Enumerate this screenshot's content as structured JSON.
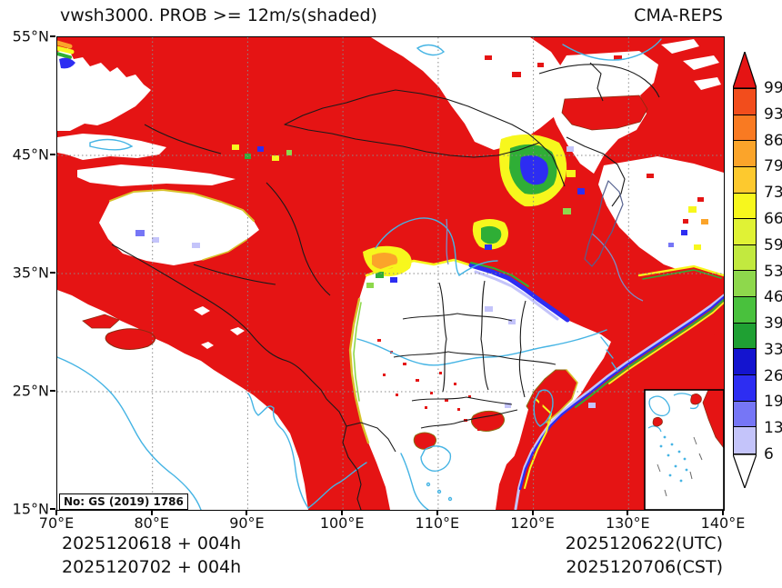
{
  "header": {
    "title": "vwsh3000. PROB >= 12m/s(shaded)",
    "source": "CMA-REPS"
  },
  "map": {
    "license": "No: GS (2019) 1786",
    "x_ticks": [
      "70°E",
      "80°E",
      "90°E",
      "100°E",
      "110°E",
      "120°E",
      "130°E",
      "140°E"
    ],
    "y_ticks": [
      "55°N",
      "45°N",
      "35°N",
      "25°N",
      "15°N"
    ]
  },
  "colorbar": {
    "values_top_to_bottom": [
      "99",
      "93",
      "86",
      "79",
      "73",
      "66",
      "59",
      "53",
      "46",
      "39",
      "33",
      "26",
      "19",
      "13",
      "6"
    ],
    "segment_colors_top_to_bottom": [
      "#f24d1c",
      "#f97a22",
      "#fba42a",
      "#fdc92e",
      "#f7f71d",
      "#e0f235",
      "#c2e93f",
      "#8ed84c",
      "#49c13d",
      "#1fa033",
      "#1414cf",
      "#2d2df2",
      "#7676f6",
      "#c4c4fa"
    ],
    "over_color": "#e51414",
    "under_color": "#ffffff"
  },
  "footer": {
    "init_line_1": "2025120618  +  004h",
    "init_line_2": "2025120702  +  004h",
    "valid_utc": "2025120622(UTC)",
    "valid_cst": "2025120706(CST)"
  },
  "colors": {
    "field_red": "#e51414",
    "fringe_yellow": "#f7f71d",
    "fringe_green": "#2fae36",
    "fringe_blue": "#2d2df2",
    "fringe_violet": "#c4c4fa",
    "river_cyan": "#45b4e4",
    "border_black": "#1a1a1a"
  },
  "chart_data": {
    "type": "heatmap",
    "title": "vwsh3000. PROB >= 12m/s(shaded)",
    "model": "CMA-REPS",
    "variable": "probability of 0-3000m vertical wind shear >= 12 m/s (percent, shaded)",
    "lon_range_deg_e": [
      70,
      140
    ],
    "lat_range_deg_n": [
      15,
      55
    ],
    "lon_ticks_deg_e": [
      70,
      80,
      90,
      100,
      110,
      120,
      130,
      140
    ],
    "lat_ticks_deg_n": [
      15,
      25,
      35,
      45,
      55
    ],
    "colorbar_levels_percent": [
      6,
      13,
      19,
      26,
      33,
      39,
      46,
      53,
      59,
      66,
      73,
      79,
      86,
      93,
      99
    ],
    "legend_position": "right",
    "grid": "dotted graticule every 10 degrees",
    "init_time": "2025120618 UTC / 2025120702 CST",
    "forecast_hour": "004h",
    "valid_time": "2025120622 UTC / 2025120706 CST",
    "field_summary": [
      "near-100% probability (solid red) over most of the domain: Tibetan Plateau, Xinjiang mountains, Mongolia, north and northeast Asia, the Sea of Okhotsk area and the western Pacific southeast of Taiwan",
      "low probability (white) over the Tarim Basin, central Mongolia near 50N/103E, the Sea of Japan, central-southern China (roughly 20-33N, 100-122E), India and the Bay of Bengal",
      "narrow yellow-green-blue transition fringes (6-93%) rim every red area, with pronounced multicolour clusters near 43N/117E, 36N/104E, along 33N, and on the northwest flank of the Pacific red area",
      "South China Sea inset box in the lower-right corner with coastline and island dashes"
    ]
  }
}
